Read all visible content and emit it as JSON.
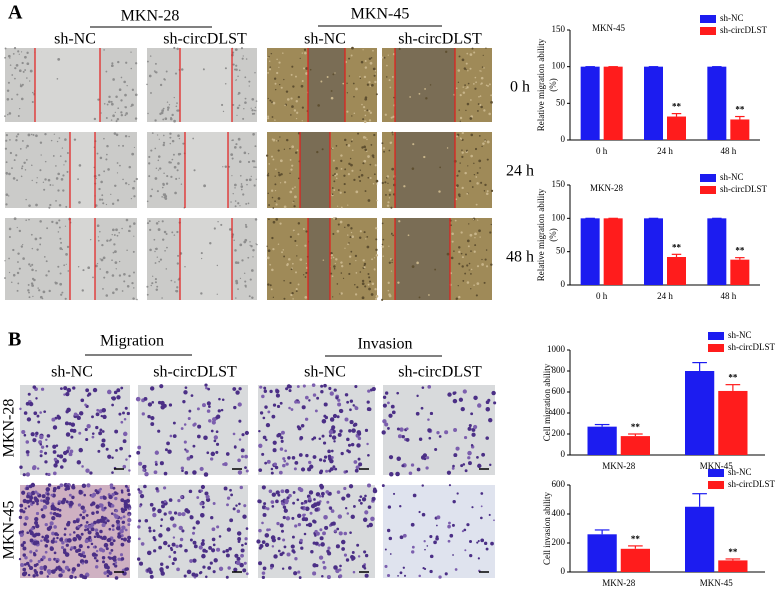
{
  "panel_a": {
    "label": "A",
    "groups": [
      "MKN-28",
      "MKN-45"
    ],
    "columns": [
      "sh-NC",
      "sh-circDLST",
      "sh-NC",
      "sh-circDLST"
    ],
    "times": [
      "0 h",
      "24 h",
      "48 h"
    ]
  },
  "panel_b": {
    "label": "B",
    "groups": [
      "Migration",
      "Invasion"
    ],
    "columns": [
      "sh-NC",
      "sh-circDLST",
      "sh-NC",
      "sh-circDLST"
    ],
    "rows": [
      "MKN-28",
      "MKN-45"
    ]
  },
  "chart_data": [
    {
      "type": "bar",
      "title": "MKN-45",
      "ylabel": [
        "Relative migration ability",
        "(%)"
      ],
      "categories": [
        "0 h",
        "24 h",
        "48 h"
      ],
      "series": [
        {
          "name": "sh-NC",
          "color": "#1c1cf0",
          "values": [
            100,
            100,
            100
          ],
          "errors": [
            0,
            0,
            0
          ],
          "significance": [
            null,
            null,
            null
          ]
        },
        {
          "name": "sh-circDLST",
          "color": "#ff1c1c",
          "values": [
            100,
            32,
            28
          ],
          "errors": [
            0,
            4,
            4
          ],
          "significance": [
            null,
            "**",
            "**"
          ]
        }
      ],
      "ylim": [
        0,
        150
      ],
      "yticks": [
        0,
        50,
        100,
        150
      ],
      "legend": "upper right"
    },
    {
      "type": "bar",
      "title": "MKN-28",
      "ylabel": [
        "Relative migration ability",
        "(%)"
      ],
      "categories": [
        "0 h",
        "24 h",
        "48 h"
      ],
      "series": [
        {
          "name": "sh-NC",
          "color": "#1c1cf0",
          "values": [
            100,
            100,
            100
          ],
          "errors": [
            0,
            0,
            0
          ],
          "significance": [
            null,
            null,
            null
          ]
        },
        {
          "name": "sh-circDLST",
          "color": "#ff1c1c",
          "values": [
            100,
            42,
            38
          ],
          "errors": [
            0,
            4,
            3
          ],
          "significance": [
            null,
            "**",
            "**"
          ]
        }
      ],
      "ylim": [
        0,
        150
      ],
      "yticks": [
        0,
        50,
        100,
        150
      ],
      "legend": "upper right"
    },
    {
      "type": "bar",
      "ylabel": [
        "Cell migration ability"
      ],
      "categories": [
        "MKN-28",
        "MKN-45"
      ],
      "series": [
        {
          "name": "sh-NC",
          "color": "#1c1cf0",
          "values": [
            270,
            800
          ],
          "errors": [
            20,
            80
          ],
          "significance": [
            null,
            null
          ]
        },
        {
          "name": "sh-circDLST",
          "color": "#ff1c1c",
          "values": [
            180,
            610
          ],
          "errors": [
            20,
            60
          ],
          "significance": [
            "**",
            "**"
          ]
        }
      ],
      "ylim": [
        0,
        1000
      ],
      "yticks": [
        0,
        200,
        400,
        600,
        800,
        1000
      ],
      "legend": "upper right"
    },
    {
      "type": "bar",
      "ylabel": [
        "Cell invasion ability"
      ],
      "categories": [
        "MKN-28",
        "MKN-45"
      ],
      "series": [
        {
          "name": "sh-NC",
          "color": "#1c1cf0",
          "values": [
            260,
            450
          ],
          "errors": [
            30,
            90
          ],
          "significance": [
            null,
            null
          ]
        },
        {
          "name": "sh-circDLST",
          "color": "#ff1c1c",
          "values": [
            160,
            80
          ],
          "errors": [
            20,
            10
          ],
          "significance": [
            "**",
            "**"
          ]
        }
      ],
      "ylim": [
        0,
        600
      ],
      "yticks": [
        0,
        200,
        400,
        600
      ],
      "legend": "upper right"
    }
  ]
}
